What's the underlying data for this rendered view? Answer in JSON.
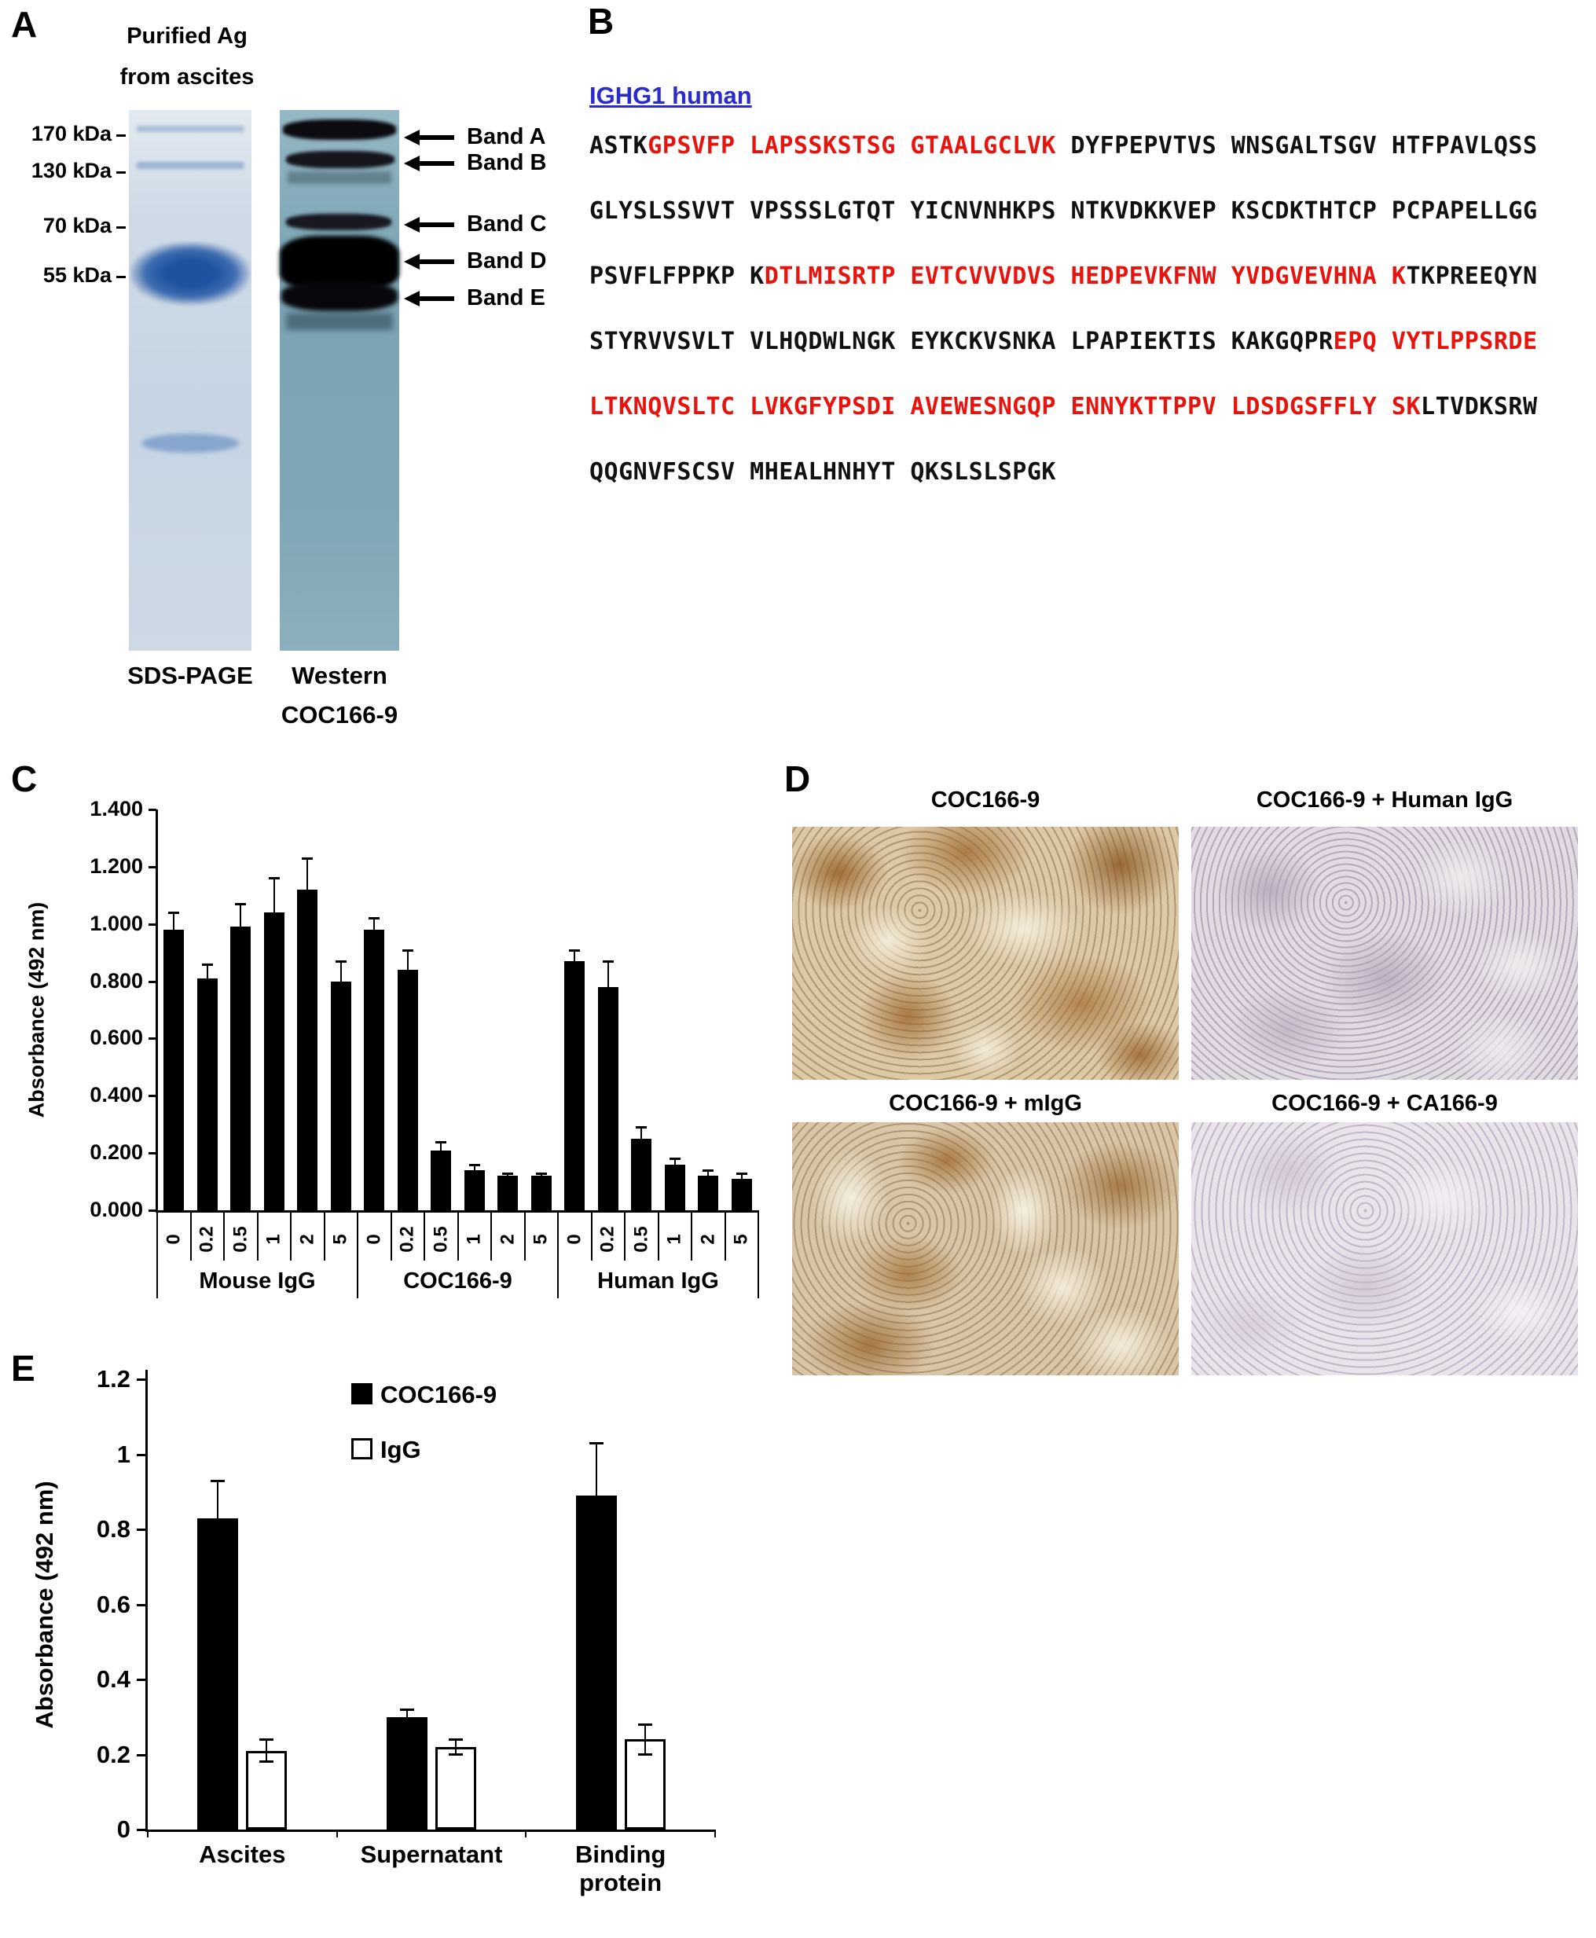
{
  "panelA": {
    "label": "A",
    "title_line1": "Purified Ag",
    "title_line2": "from ascites",
    "markers": [
      "170 kDa",
      "130 kDa",
      "70 kDa",
      "55 kDa"
    ],
    "bands": [
      "Band A",
      "Band B",
      "Band C",
      "Band D",
      "Band E"
    ],
    "lane1_label": "SDS-PAGE",
    "lane2_label": "Western",
    "lane2_sublabel": "COC166-9"
  },
  "panelB": {
    "label": "B",
    "header": "IGHG1 human",
    "lines": [
      [
        {
          "t": "ASTK",
          "c": "k"
        },
        {
          "t": "GPSVFP LAPSSKSTSG GTAALGCLVK",
          "c": "r"
        },
        {
          "t": " DYFPEPVTVS WNSGALTSGV HTFPAVLQSS",
          "c": "k"
        }
      ],
      [
        {
          "t": "GLYSLSSVVT VPSSSLGTQT YICNVNHKPS NTKVDKKVEP KSCDKTHTCP PCPAPELLGG",
          "c": "k"
        }
      ],
      [
        {
          "t": "PSVFLFPPKP K",
          "c": "k"
        },
        {
          "t": "DTLMISRTP EVTCVVVDVS HEDPEVKFNW YVDGVEVHNA K",
          "c": "r"
        },
        {
          "t": "TKPREEQYN",
          "c": "k"
        }
      ],
      [
        {
          "t": "STYRVVSVLT VLHQDWLNGK EYKCKVSNKA LPAPIEKTIS KAKGQPR",
          "c": "k"
        },
        {
          "t": "EPQ VYTLPPSRDE",
          "c": "r"
        }
      ],
      [
        {
          "t": "LTKNQVSLTC LVKGFYPSDI AVEWESNGQP ENNYKTTPPV LDSDGSFFLY SK",
          "c": "r"
        },
        {
          "t": "LTVDKSRW",
          "c": "k"
        }
      ],
      [
        {
          "t": "QQGNVFSCSV MHEALHNHYT QKSLSLSPGK",
          "c": "k"
        }
      ]
    ]
  },
  "panelC": {
    "label": "C"
  },
  "panelD": {
    "label": "D",
    "images": [
      {
        "title": "COC166-9"
      },
      {
        "title": "COC166-9 + Human IgG"
      },
      {
        "title": "COC166-9 + mIgG"
      },
      {
        "title": "COC166-9 + CA166-9"
      }
    ]
  },
  "panelE": {
    "label": "E"
  },
  "chart_data": [
    {
      "id": "panelC",
      "type": "bar",
      "title": "",
      "xlabel": "",
      "ylabel": "Absorbance (492 nm)",
      "ylim": [
        0,
        1.4
      ],
      "yticks": [
        "0.000",
        "0.200",
        "0.400",
        "0.600",
        "0.800",
        "1.000",
        "1.200",
        "1.400"
      ],
      "bar_color": "#000000",
      "groups": [
        {
          "label": "Mouse IgG",
          "categories": [
            "0",
            "0.2",
            "0.5",
            "1",
            "2",
            "5"
          ],
          "values": [
            0.98,
            0.81,
            0.99,
            1.04,
            1.12,
            0.8
          ],
          "errors": [
            0.06,
            0.05,
            0.08,
            0.12,
            0.11,
            0.07
          ]
        },
        {
          "label": "COC166-9",
          "categories": [
            "0",
            "0.2",
            "0.5",
            "1",
            "2",
            "5"
          ],
          "values": [
            0.98,
            0.84,
            0.21,
            0.14,
            0.12,
            0.12
          ],
          "errors": [
            0.04,
            0.07,
            0.03,
            0.02,
            0.01,
            0.01
          ]
        },
        {
          "label": "Human IgG",
          "categories": [
            "0",
            "0.2",
            "0.5",
            "1",
            "2",
            "5"
          ],
          "values": [
            0.87,
            0.78,
            0.25,
            0.16,
            0.12,
            0.11
          ],
          "errors": [
            0.04,
            0.09,
            0.04,
            0.02,
            0.02,
            0.02
          ]
        }
      ]
    },
    {
      "id": "panelE",
      "type": "bar",
      "title": "",
      "xlabel": "",
      "ylabel": "Absorbance (492 nm)",
      "ylim": [
        0,
        1.2
      ],
      "yticks": [
        "0",
        "0.2",
        "0.4",
        "0.6",
        "0.8",
        "1",
        "1.2"
      ],
      "ytick_values": [
        0,
        0.2,
        0.4,
        0.6,
        0.8,
        1,
        1.2
      ],
      "categories": [
        "Ascites",
        "Supernatant",
        "Binding\nprotein"
      ],
      "series": [
        {
          "name": "COC166-9",
          "fill": "#000000",
          "values": [
            0.83,
            0.3,
            0.89
          ],
          "errors": [
            0.1,
            0.02,
            0.14
          ]
        },
        {
          "name": "IgG",
          "fill": "#ffffff",
          "values": [
            0.21,
            0.22,
            0.24
          ],
          "errors": [
            0.03,
            0.02,
            0.04
          ]
        }
      ],
      "legend_position": "top-center"
    }
  ]
}
